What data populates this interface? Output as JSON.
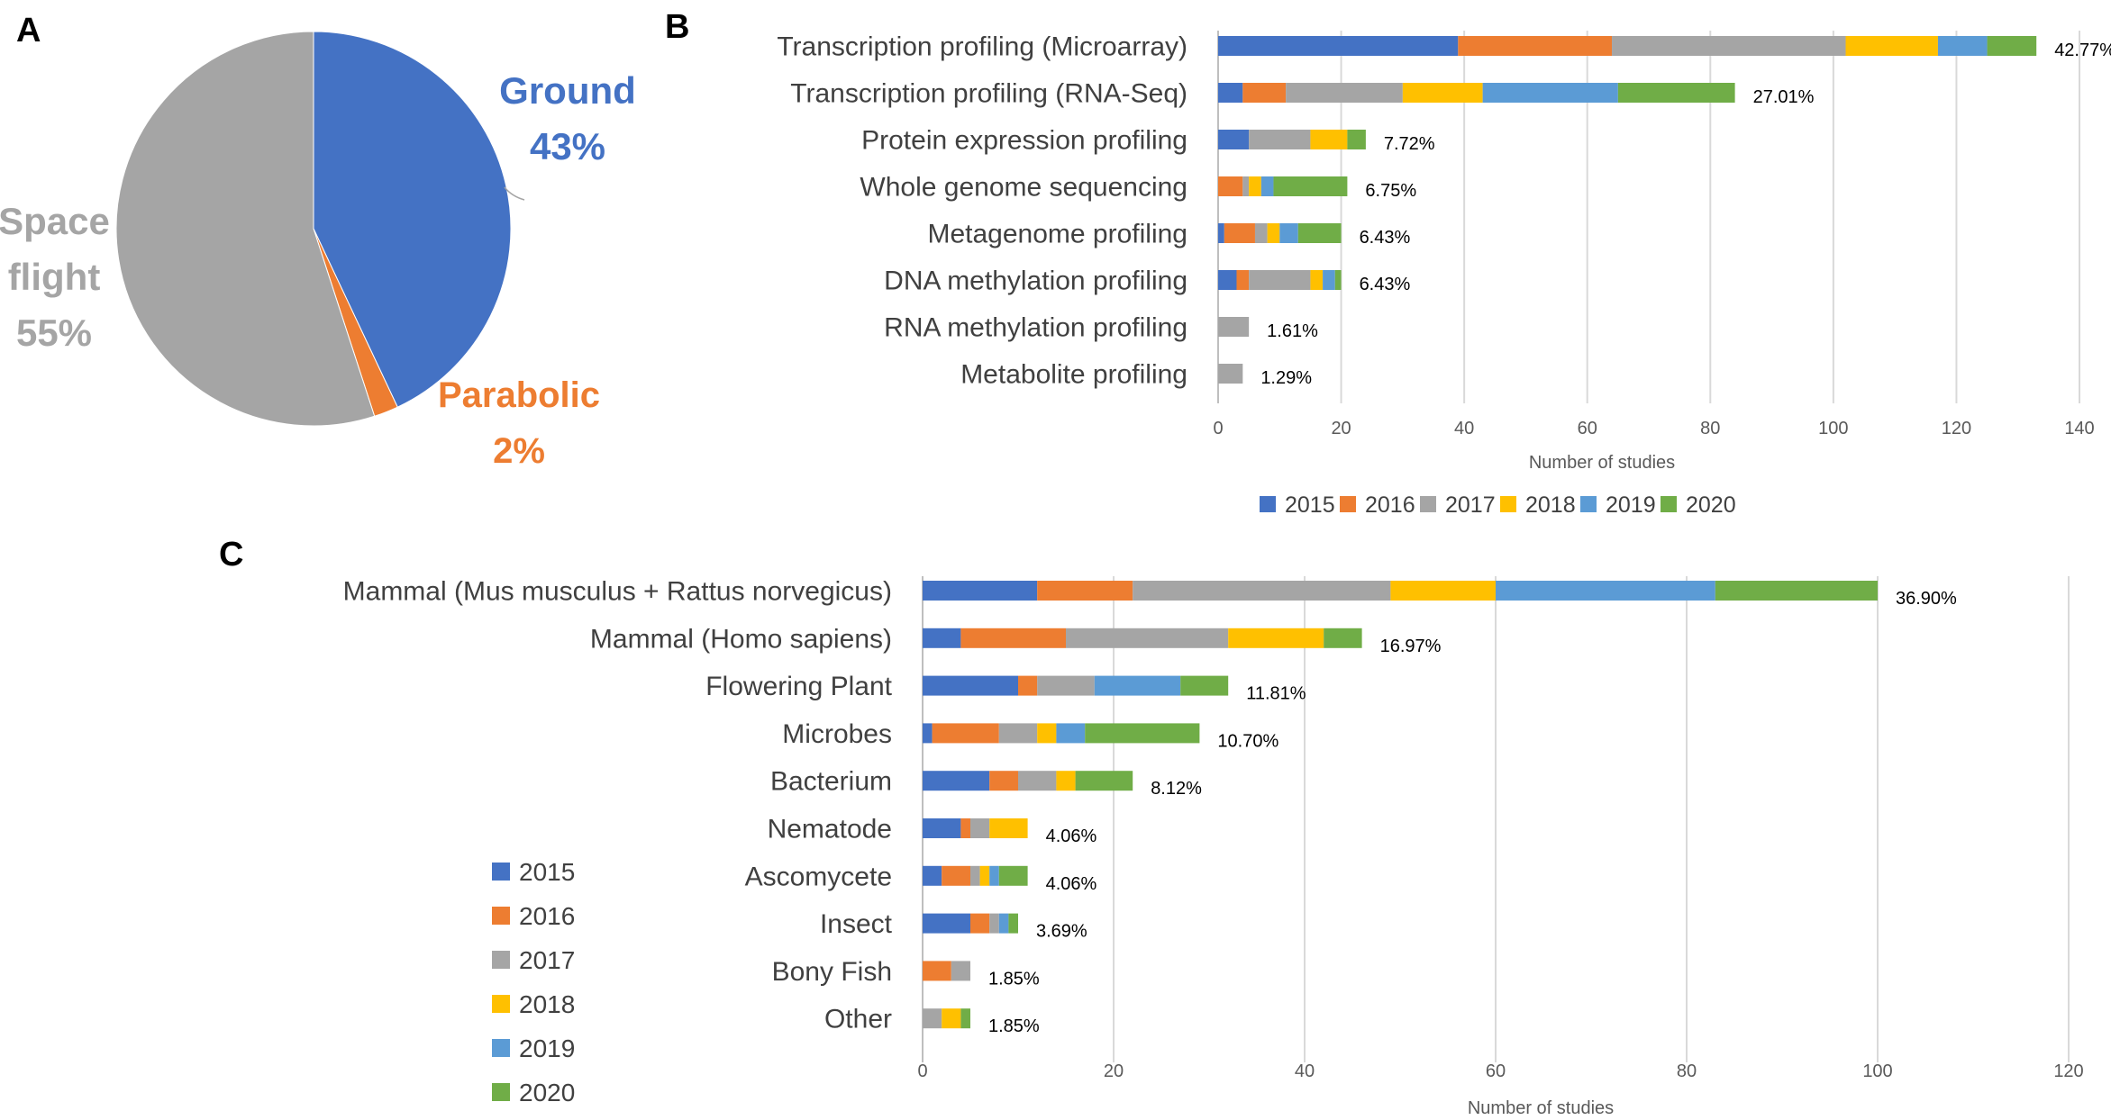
{
  "panels": {
    "a": "A",
    "b": "B",
    "c": "C"
  },
  "colors": {
    "2015": "#4472C4",
    "2016": "#ED7D31",
    "2017": "#A5A5A5",
    "2018": "#FFC000",
    "2019": "#5B9BD5",
    "2020": "#70AD47",
    "grid": "#D9D9D9",
    "axis_text": "#595959",
    "category_text": "#404040"
  },
  "chart_data": [
    {
      "panel": "A",
      "type": "pie",
      "slices": [
        {
          "name": "Ground",
          "value": 43,
          "label": "43%",
          "color": "#4472C4"
        },
        {
          "name": "Parabolic",
          "value": 2,
          "label": "2%",
          "color": "#ED7D31"
        },
        {
          "name": "Space flight",
          "name_lines": [
            "Space",
            "flight"
          ],
          "value": 55,
          "label": "55%",
          "color": "#A5A5A5"
        }
      ]
    },
    {
      "panel": "B",
      "type": "bar",
      "orientation": "horizontal",
      "stacked": true,
      "xlabel": "Number of studies",
      "ylabel": "",
      "xlim": [
        0,
        140
      ],
      "xticks": [
        0,
        20,
        40,
        60,
        80,
        100,
        120,
        140
      ],
      "grid": true,
      "legend": {
        "position": "bottom"
      },
      "categories": [
        "Transcription profiling (Microarray)",
        "Transcription profiling (RNA-Seq)",
        "Protein expression profiling",
        "Whole genome sequencing",
        "Metagenome profiling",
        "DNA methylation profiling",
        "RNA methylation profiling",
        "Metabolite profiling"
      ],
      "series": [
        {
          "name": "2015",
          "values": [
            39,
            4,
            5,
            0,
            1,
            3,
            0,
            0
          ]
        },
        {
          "name": "2016",
          "values": [
            25,
            7,
            0,
            4,
            5,
            2,
            0,
            0
          ]
        },
        {
          "name": "2017",
          "values": [
            38,
            19,
            10,
            1,
            2,
            10,
            5,
            4
          ]
        },
        {
          "name": "2018",
          "values": [
            15,
            13,
            6,
            2,
            2,
            2,
            0,
            0
          ]
        },
        {
          "name": "2019",
          "values": [
            8,
            22,
            0,
            2,
            3,
            2,
            0,
            0
          ]
        },
        {
          "name": "2020",
          "values": [
            8,
            19,
            3,
            12,
            7,
            1,
            0,
            0
          ]
        }
      ],
      "data_labels": [
        "42.77%",
        "27.01%",
        "7.72%",
        "6.75%",
        "6.43%",
        "6.43%",
        "1.61%",
        "1.29%"
      ]
    },
    {
      "panel": "C",
      "type": "bar",
      "orientation": "horizontal",
      "stacked": true,
      "xlabel": "Number of studies",
      "ylabel": "",
      "xlim": [
        0,
        120
      ],
      "xticks": [
        0,
        20,
        40,
        60,
        80,
        100,
        120
      ],
      "grid": true,
      "legend": {
        "position": "left"
      },
      "categories": [
        "Mammal (Mus musculus + Rattus norvegicus)",
        "Mammal (Homo sapiens)",
        "Flowering Plant",
        "Microbes",
        "Bacterium",
        "Nematode",
        "Ascomycete",
        "Insect",
        "Bony Fish",
        "Other"
      ],
      "series": [
        {
          "name": "2015",
          "values": [
            12,
            4,
            10,
            1,
            7,
            4,
            2,
            5,
            0,
            0
          ]
        },
        {
          "name": "2016",
          "values": [
            10,
            11,
            2,
            7,
            3,
            1,
            3,
            2,
            3,
            0
          ]
        },
        {
          "name": "2017",
          "values": [
            27,
            17,
            6,
            4,
            4,
            2,
            1,
            1,
            2,
            2
          ]
        },
        {
          "name": "2018",
          "values": [
            11,
            10,
            0,
            2,
            2,
            4,
            1,
            0,
            0,
            2
          ]
        },
        {
          "name": "2019",
          "values": [
            23,
            0,
            9,
            3,
            0,
            0,
            1,
            1,
            0,
            0
          ]
        },
        {
          "name": "2020",
          "values": [
            17,
            4,
            5,
            12,
            6,
            0,
            3,
            1,
            0,
            1
          ]
        }
      ],
      "data_labels": [
        "36.90%",
        "16.97%",
        "11.81%",
        "10.70%",
        "8.12%",
        "4.06%",
        "4.06%",
        "3.69%",
        "1.85%",
        "1.85%"
      ]
    }
  ]
}
